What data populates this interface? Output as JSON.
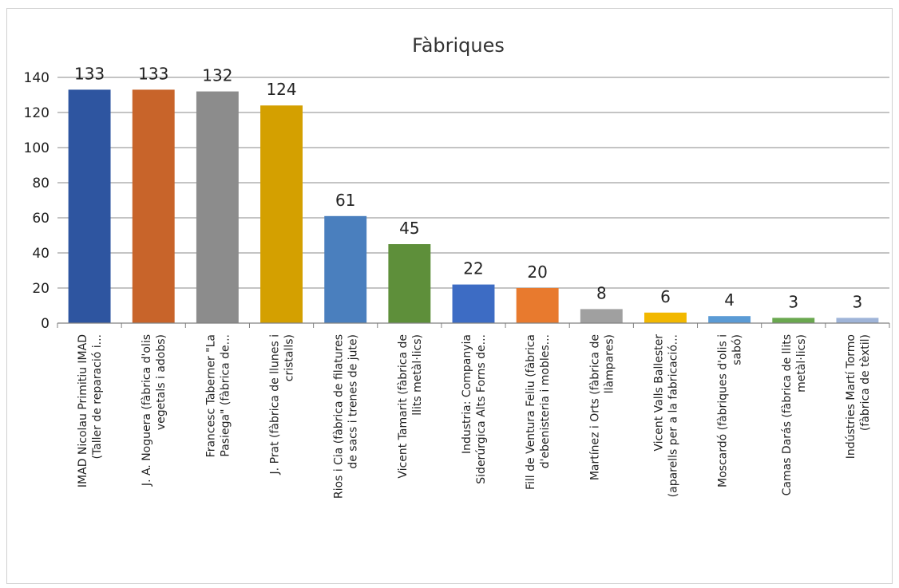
{
  "chart_data": {
    "type": "bar",
    "title": "Fàbriques",
    "xlabel": "",
    "ylabel": "",
    "ylim": [
      0,
      140
    ],
    "yticks": [
      0,
      20,
      40,
      60,
      80,
      100,
      120,
      140
    ],
    "grid": true,
    "legend": "none",
    "categories": [
      [
        "IMAD Nicolau Primitiu IMAD",
        "(Taller de reparació i..."
      ],
      [
        "J. A. Noguera (fàbrica d'olis",
        "vegetals i adobs)"
      ],
      [
        "Francesc Taberner \"La",
        "Pasiega\" (fàbrica de..."
      ],
      [
        "J. Prat (fàbrica de llunes i",
        "cristalls)"
      ],
      [
        "Rios i Cia (fàbrica de filatures",
        "de sacs i trenes de jute)"
      ],
      [
        "Vicent Tamarit (fàbrica de",
        "llits metàl·lics)"
      ],
      [
        "Industria: Companyia",
        "Siderúrgica Alts Forns de..."
      ],
      [
        "Fill de Ventura Feliu (fàbrica",
        "d'ebenisteria i mobles..."
      ],
      [
        "Martínez i Orts (fàbrica de",
        "llàmpares)"
      ],
      [
        "Vicent Valls Ballester",
        "(aparells per a la fabricació..."
      ],
      [
        "Moscardó (fàbriques d'olis i",
        "sabó)"
      ],
      [
        "Camas Darás (fàbrica de llits",
        "metàl·lics)"
      ],
      [
        "Indústries Martí Tormo",
        "(fàbrica de tèxtil)"
      ]
    ],
    "values": [
      133,
      133,
      132,
      124,
      61,
      45,
      22,
      20,
      8,
      6,
      4,
      3,
      3
    ],
    "colors": [
      "#2e55a0",
      "#c8642a",
      "#8c8c8c",
      "#d4a000",
      "#4a7fbe",
      "#5e8f3a",
      "#3d6cc4",
      "#e87a2e",
      "#a0a0a0",
      "#f2b800",
      "#5b9bd5",
      "#6aa84f",
      "#9fb4d8"
    ],
    "gridColor": "#a0a0a0"
  }
}
